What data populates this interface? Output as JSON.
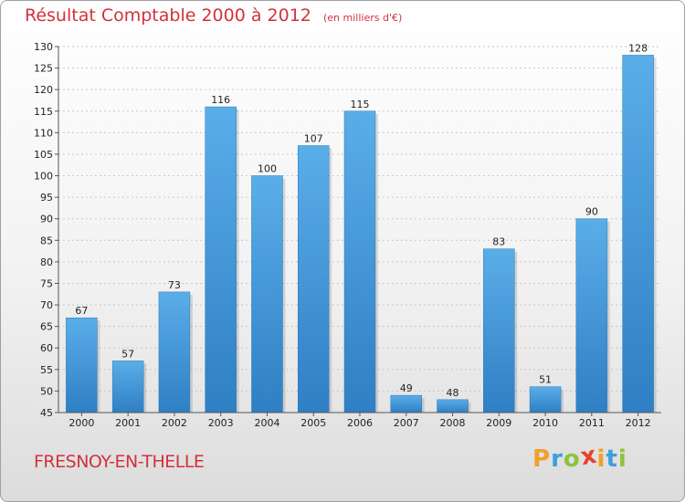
{
  "chart_data": {
    "type": "bar",
    "title": "Résultat Comptable 2000 à 2012",
    "subtitle": "(en milliers d'€)",
    "categories": [
      "2000",
      "2001",
      "2002",
      "2003",
      "2004",
      "2005",
      "2006",
      "2007",
      "2008",
      "2009",
      "2010",
      "2011",
      "2012"
    ],
    "values": [
      67,
      57,
      73,
      116,
      100,
      107,
      115,
      49,
      48,
      83,
      51,
      90,
      128
    ],
    "xlabel": "",
    "ylabel": "",
    "ylim": [
      45,
      130
    ],
    "yticks": [
      45,
      50,
      55,
      60,
      65,
      70,
      75,
      80,
      85,
      90,
      95,
      100,
      105,
      110,
      115,
      120,
      125,
      130
    ],
    "grid": true,
    "bar_color": "#3a8fd6"
  },
  "footer": {
    "commune": "FRESNOY-EN-THELLE",
    "logo_letters": [
      "P",
      "r",
      "o",
      "x",
      "i",
      "t",
      "i"
    ],
    "logo_colors": [
      "#f0a02a",
      "#3aa0dc",
      "#8cc43c",
      "#e8412c",
      "#f0a02a",
      "#3aa0dc",
      "#8cc43c"
    ]
  }
}
